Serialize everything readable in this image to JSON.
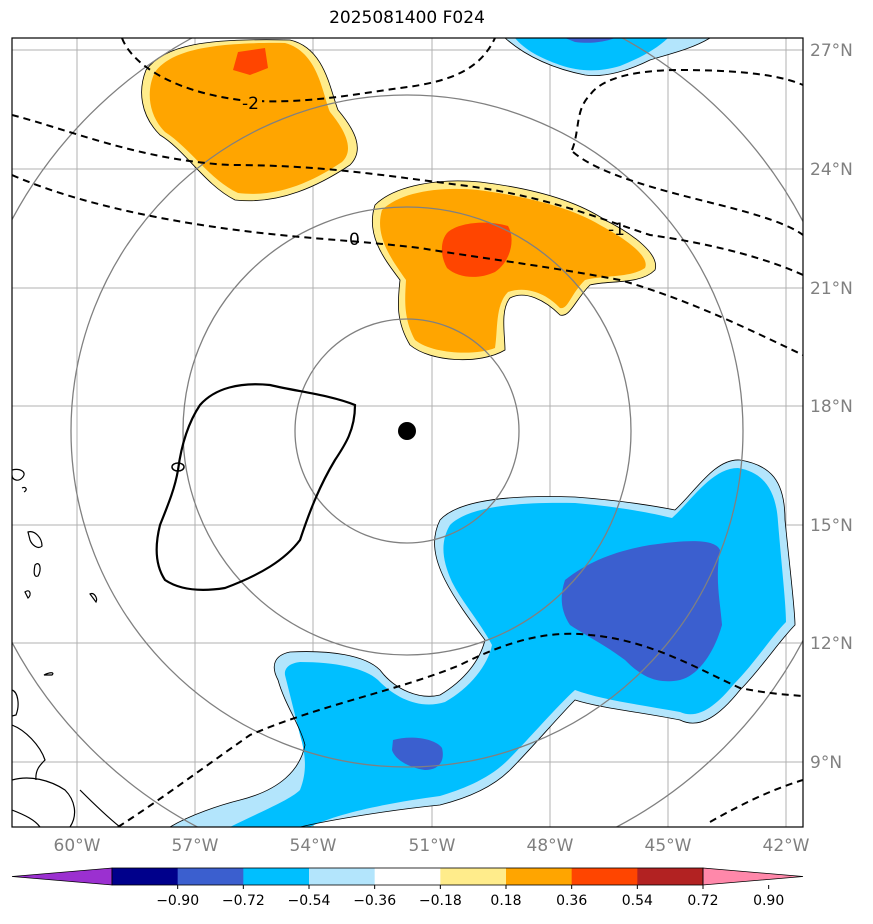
{
  "title": "2025081400 F024",
  "map": {
    "lat_labels": [
      "27°N",
      "24°N",
      "21°N",
      "18°N",
      "15°N",
      "12°N",
      "9°N"
    ],
    "lon_labels": [
      "60°W",
      "57°W",
      "54°W",
      "51°W",
      "48°W",
      "45°W",
      "42°W"
    ],
    "contour_labels": [
      "-2",
      "0",
      "-1"
    ],
    "storm_center": {
      "lon": -51.6,
      "lat": 17.3
    }
  },
  "colorbar": {
    "tick_labels": [
      "−0.90",
      "−0.72",
      "−0.54",
      "−0.36",
      "−0.18",
      "0.18",
      "0.36",
      "0.54",
      "0.72",
      "0.90"
    ],
    "colors": [
      "#9b30d0",
      "#00008b",
      "#3b5fcf",
      "#00bfff",
      "#b3e5fc",
      "#ffffff",
      "#ffec8b",
      "#ffa500",
      "#ff4500",
      "#b22222",
      "#ff88aa"
    ],
    "levels": [
      -0.9,
      -0.72,
      -0.54,
      -0.36,
      -0.18,
      0.18,
      0.36,
      0.54,
      0.72,
      0.9
    ]
  }
}
